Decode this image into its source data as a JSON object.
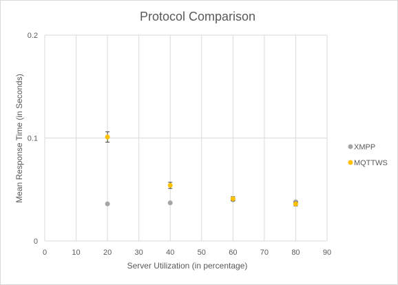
{
  "chart_data": {
    "type": "scatter",
    "title": "Protocol Comparison",
    "xlabel": "Server Utilization (in percentage)",
    "ylabel": "Mean Response Time (in Seconds)",
    "xlim": [
      0,
      90
    ],
    "ylim": [
      0,
      0.2
    ],
    "x_ticks": [
      "0",
      "10",
      "20",
      "30",
      "40",
      "50",
      "60",
      "70",
      "80",
      "90"
    ],
    "y_ticks": [
      "0",
      "0.1",
      "0.2"
    ],
    "grid": true,
    "legend_position": "right",
    "series": [
      {
        "name": "XMPP",
        "color": "#a5a5a5",
        "points": [
          {
            "x": 20,
            "y": 0.036,
            "err": 0
          },
          {
            "x": 40,
            "y": 0.037,
            "err": 0
          },
          {
            "x": 60,
            "y": 0.04,
            "err": 0
          },
          {
            "x": 80,
            "y": 0.038,
            "err": 0
          }
        ]
      },
      {
        "name": "MQTTWS",
        "color": "#ffc000",
        "points": [
          {
            "x": 20,
            "y": 0.101,
            "err": 0.005
          },
          {
            "x": 40,
            "y": 0.054,
            "err": 0.003
          },
          {
            "x": 60,
            "y": 0.041,
            "err": 0.002
          },
          {
            "x": 80,
            "y": 0.036,
            "err": 0.002
          }
        ]
      }
    ]
  }
}
